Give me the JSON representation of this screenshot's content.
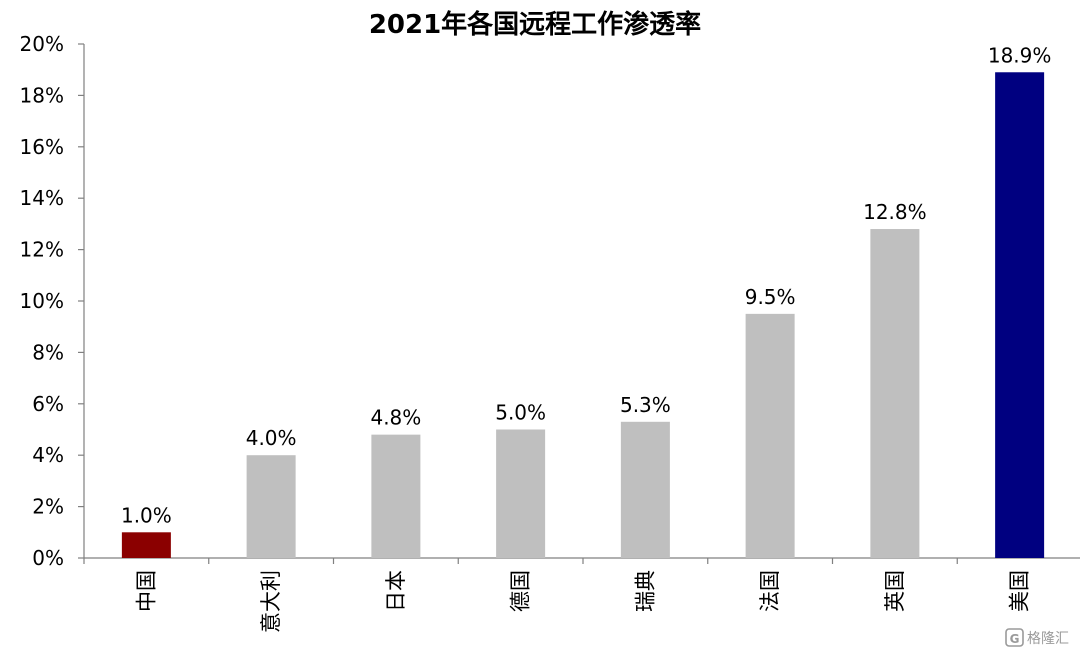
{
  "chart_data": {
    "type": "bar",
    "title": "2021年各国远程工作渗透率",
    "categories": [
      "中国",
      "意大利",
      "日本",
      "德国",
      "瑞典",
      "法国",
      "英国",
      "美国"
    ],
    "values": [
      1.0,
      4.0,
      4.8,
      5.0,
      5.3,
      9.5,
      12.8,
      18.9
    ],
    "data_labels": [
      "1.0%",
      "4.0%",
      "4.8%",
      "5.0%",
      "5.3%",
      "9.5%",
      "12.8%",
      "18.9%"
    ],
    "ylim": [
      0,
      20
    ],
    "yticks": [
      0,
      2,
      4,
      6,
      8,
      10,
      12,
      14,
      16,
      18,
      20
    ],
    "ytick_labels": [
      "0%",
      "2%",
      "4%",
      "6%",
      "8%",
      "10%",
      "12%",
      "14%",
      "16%",
      "18%",
      "20%"
    ],
    "xlabel": "",
    "ylabel": "",
    "grid": false,
    "bar_colors": [
      "#8b0000",
      "#bfbfbf",
      "#bfbfbf",
      "#bfbfbf",
      "#bfbfbf",
      "#bfbfbf",
      "#bfbfbf",
      "#000080"
    ]
  },
  "watermark": {
    "icon": "gelonghui-logo-icon",
    "text": "格隆汇"
  }
}
